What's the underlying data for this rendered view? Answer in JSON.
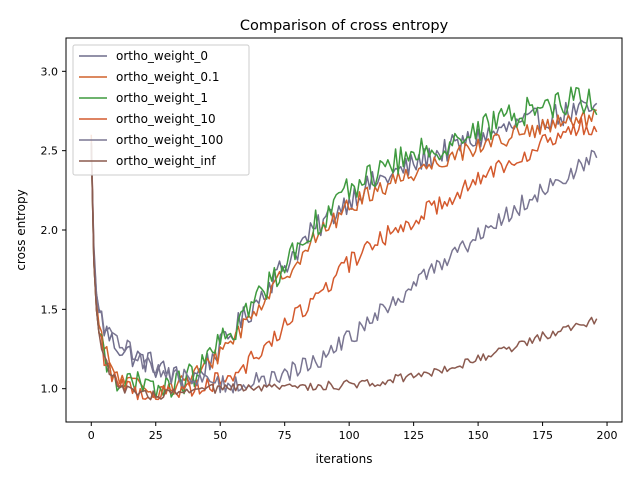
{
  "chart_data": {
    "type": "line",
    "title": "Comparison of cross entropy",
    "xlabel": "iterations",
    "ylabel": "cross entropy",
    "xlim": [
      -9.8,
      205.8
    ],
    "ylim": [
      0.79,
      3.21
    ],
    "xticks": [
      0,
      25,
      50,
      75,
      100,
      125,
      150,
      175,
      200
    ],
    "yticks": [
      1.0,
      1.5,
      2.0,
      2.5,
      3.0
    ],
    "grid": false,
    "legend": "top-left",
    "x_start": 0,
    "x_end": 196,
    "series": [
      {
        "name": "ortho_weight_0",
        "color": "#6f6d8c",
        "keypoints": [
          [
            0,
            2.55
          ],
          [
            1,
            1.9
          ],
          [
            2,
            1.6
          ],
          [
            3,
            1.5
          ],
          [
            5,
            1.38
          ],
          [
            8,
            1.3
          ],
          [
            12,
            1.25
          ],
          [
            17,
            1.2
          ],
          [
            22,
            1.17
          ],
          [
            27,
            1.12
          ],
          [
            32,
            1.08
          ],
          [
            37,
            1.05
          ],
          [
            42,
            1.1
          ],
          [
            47,
            1.2
          ],
          [
            52,
            1.3
          ],
          [
            57,
            1.4
          ],
          [
            62,
            1.5
          ],
          [
            67,
            1.62
          ],
          [
            72,
            1.72
          ],
          [
            77,
            1.82
          ],
          [
            82,
            1.92
          ],
          [
            87,
            2.0
          ],
          [
            92,
            2.08
          ],
          [
            97,
            2.15
          ],
          [
            102,
            2.22
          ],
          [
            110,
            2.3
          ],
          [
            120,
            2.37
          ],
          [
            130,
            2.45
          ],
          [
            140,
            2.52
          ],
          [
            150,
            2.58
          ],
          [
            160,
            2.63
          ],
          [
            170,
            2.68
          ],
          [
            180,
            2.72
          ],
          [
            190,
            2.75
          ],
          [
            196,
            2.75
          ]
        ],
        "noise": 0.08
      },
      {
        "name": "ortho_weight_0.1",
        "color": "#d0622c",
        "keypoints": [
          [
            0,
            2.6
          ],
          [
            1,
            1.85
          ],
          [
            2,
            1.55
          ],
          [
            3,
            1.4
          ],
          [
            5,
            1.25
          ],
          [
            8,
            1.13
          ],
          [
            12,
            1.05
          ],
          [
            17,
            1.02
          ],
          [
            22,
            1.0
          ],
          [
            27,
            1.0
          ],
          [
            32,
            1.02
          ],
          [
            37,
            1.05
          ],
          [
            42,
            1.1
          ],
          [
            47,
            1.18
          ],
          [
            52,
            1.27
          ],
          [
            57,
            1.36
          ],
          [
            62,
            1.46
          ],
          [
            67,
            1.56
          ],
          [
            72,
            1.66
          ],
          [
            77,
            1.76
          ],
          [
            82,
            1.86
          ],
          [
            87,
            1.95
          ],
          [
            92,
            2.03
          ],
          [
            97,
            2.1
          ],
          [
            102,
            2.17
          ],
          [
            110,
            2.25
          ],
          [
            120,
            2.33
          ],
          [
            130,
            2.4
          ],
          [
            140,
            2.47
          ],
          [
            150,
            2.53
          ],
          [
            160,
            2.58
          ],
          [
            170,
            2.62
          ],
          [
            180,
            2.66
          ],
          [
            190,
            2.7
          ],
          [
            196,
            2.7
          ]
        ],
        "noise": 0.06
      },
      {
        "name": "ortho_weight_1",
        "color": "#3f9a3f",
        "keypoints": [
          [
            0,
            2.55
          ],
          [
            1,
            1.8
          ],
          [
            2,
            1.5
          ],
          [
            3,
            1.35
          ],
          [
            5,
            1.2
          ],
          [
            8,
            1.1
          ],
          [
            12,
            1.05
          ],
          [
            17,
            1.02
          ],
          [
            22,
            1.0
          ],
          [
            27,
            1.0
          ],
          [
            32,
            1.02
          ],
          [
            37,
            1.06
          ],
          [
            42,
            1.12
          ],
          [
            47,
            1.22
          ],
          [
            52,
            1.32
          ],
          [
            57,
            1.42
          ],
          [
            62,
            1.52
          ],
          [
            67,
            1.62
          ],
          [
            72,
            1.73
          ],
          [
            77,
            1.84
          ],
          [
            82,
            1.94
          ],
          [
            87,
            2.04
          ],
          [
            92,
            2.12
          ],
          [
            97,
            2.2
          ],
          [
            102,
            2.28
          ],
          [
            110,
            2.36
          ],
          [
            120,
            2.44
          ],
          [
            130,
            2.5
          ],
          [
            140,
            2.56
          ],
          [
            150,
            2.62
          ],
          [
            160,
            2.7
          ],
          [
            170,
            2.76
          ],
          [
            180,
            2.8
          ],
          [
            190,
            2.83
          ],
          [
            196,
            2.8
          ]
        ],
        "noise": 0.09
      },
      {
        "name": "ortho_weight_10",
        "color": "#d45a2e",
        "keypoints": [
          [
            0,
            2.55
          ],
          [
            1,
            1.8
          ],
          [
            2,
            1.5
          ],
          [
            3,
            1.35
          ],
          [
            5,
            1.2
          ],
          [
            8,
            1.1
          ],
          [
            12,
            1.02
          ],
          [
            17,
            0.98
          ],
          [
            22,
            0.97
          ],
          [
            27,
            0.97
          ],
          [
            32,
            0.98
          ],
          [
            37,
            1.0
          ],
          [
            42,
            1.02
          ],
          [
            47,
            1.04
          ],
          [
            52,
            1.07
          ],
          [
            57,
            1.12
          ],
          [
            62,
            1.18
          ],
          [
            67,
            1.26
          ],
          [
            72,
            1.34
          ],
          [
            77,
            1.42
          ],
          [
            82,
            1.5
          ],
          [
            87,
            1.58
          ],
          [
            92,
            1.66
          ],
          [
            97,
            1.74
          ],
          [
            102,
            1.82
          ],
          [
            110,
            1.92
          ],
          [
            120,
            2.02
          ],
          [
            130,
            2.12
          ],
          [
            140,
            2.22
          ],
          [
            150,
            2.32
          ],
          [
            160,
            2.42
          ],
          [
            170,
            2.5
          ],
          [
            180,
            2.58
          ],
          [
            190,
            2.65
          ],
          [
            196,
            2.65
          ]
        ],
        "noise": 0.06
      },
      {
        "name": "ortho_weight_100",
        "color": "#7a7692",
        "keypoints": [
          [
            0,
            2.55
          ],
          [
            1,
            1.85
          ],
          [
            2,
            1.6
          ],
          [
            3,
            1.48
          ],
          [
            5,
            1.38
          ],
          [
            8,
            1.32
          ],
          [
            12,
            1.28
          ],
          [
            17,
            1.22
          ],
          [
            22,
            1.16
          ],
          [
            27,
            1.11
          ],
          [
            32,
            1.08
          ],
          [
            37,
            1.06
          ],
          [
            42,
            1.05
          ],
          [
            47,
            1.04
          ],
          [
            52,
            1.03
          ],
          [
            57,
            1.03
          ],
          [
            62,
            1.04
          ],
          [
            67,
            1.05
          ],
          [
            72,
            1.07
          ],
          [
            77,
            1.1
          ],
          [
            82,
            1.14
          ],
          [
            87,
            1.18
          ],
          [
            92,
            1.22
          ],
          [
            97,
            1.28
          ],
          [
            102,
            1.34
          ],
          [
            110,
            1.45
          ],
          [
            120,
            1.58
          ],
          [
            130,
            1.72
          ],
          [
            140,
            1.85
          ],
          [
            150,
            1.97
          ],
          [
            160,
            2.08
          ],
          [
            170,
            2.2
          ],
          [
            180,
            2.3
          ],
          [
            190,
            2.4
          ],
          [
            196,
            2.47
          ]
        ],
        "noise": 0.06
      },
      {
        "name": "ortho_weight_inf",
        "color": "#8b5a4f",
        "keypoints": [
          [
            0,
            2.55
          ],
          [
            1,
            1.8
          ],
          [
            2,
            1.5
          ],
          [
            3,
            1.35
          ],
          [
            5,
            1.2
          ],
          [
            8,
            1.08
          ],
          [
            12,
            1.0
          ],
          [
            17,
            0.97
          ],
          [
            22,
            0.96
          ],
          [
            27,
            0.96
          ],
          [
            32,
            0.97
          ],
          [
            37,
            0.98
          ],
          [
            42,
            0.99
          ],
          [
            47,
            1.0
          ],
          [
            52,
            1.0
          ],
          [
            57,
            1.0
          ],
          [
            62,
            1.0
          ],
          [
            67,
            1.0
          ],
          [
            72,
            1.01
          ],
          [
            77,
            1.01
          ],
          [
            82,
            1.01
          ],
          [
            87,
            1.02
          ],
          [
            92,
            1.02
          ],
          [
            97,
            1.02
          ],
          [
            102,
            1.03
          ],
          [
            110,
            1.04
          ],
          [
            120,
            1.07
          ],
          [
            130,
            1.1
          ],
          [
            140,
            1.14
          ],
          [
            150,
            1.19
          ],
          [
            160,
            1.24
          ],
          [
            170,
            1.3
          ],
          [
            180,
            1.36
          ],
          [
            190,
            1.41
          ],
          [
            196,
            1.44
          ]
        ],
        "noise": 0.03
      }
    ]
  }
}
